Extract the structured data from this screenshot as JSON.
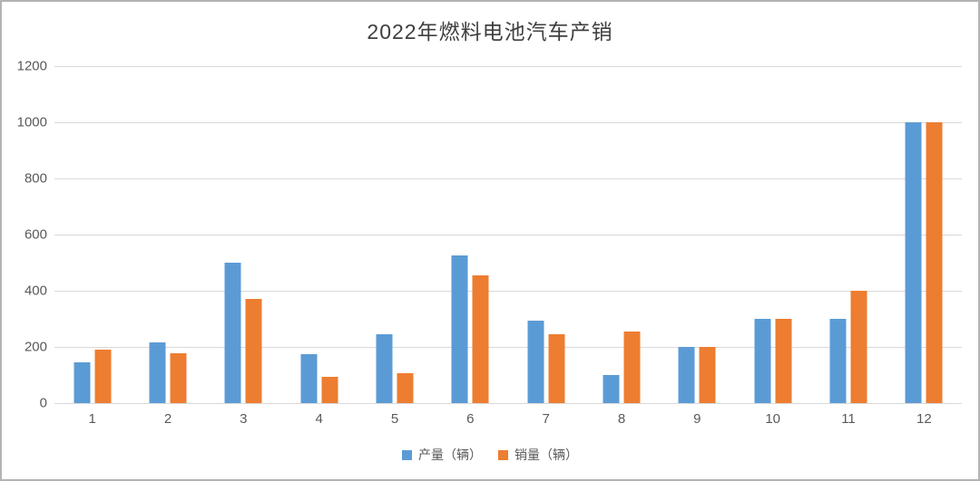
{
  "chart_data": {
    "type": "bar",
    "title": "2022年燃料电池汽车产销",
    "categories": [
      "1",
      "2",
      "3",
      "4",
      "5",
      "6",
      "7",
      "8",
      "9",
      "10",
      "11",
      "12"
    ],
    "series": [
      {
        "name": "产量（辆）",
        "color": "#5B9BD5",
        "values": [
          145,
          215,
          500,
          175,
          245,
          525,
          295,
          100,
          200,
          300,
          300,
          1000
        ]
      },
      {
        "name": "销量（辆）",
        "color": "#ED7D31",
        "values": [
          190,
          178,
          370,
          95,
          105,
          455,
          245,
          255,
          200,
          300,
          400,
          1000
        ]
      }
    ],
    "xlabel": "",
    "ylabel": "",
    "ylim": [
      0,
      1200
    ],
    "yticks": [
      0,
      200,
      400,
      600,
      800,
      1000,
      1200
    ],
    "grid": true,
    "legend_position": "bottom-center"
  },
  "colors": {
    "gridline": "#d9d9d9",
    "tick_label": "#595959",
    "title_text": "#3f3f3f",
    "frame_border": "#b3b3b3",
    "background": "#ffffff"
  }
}
